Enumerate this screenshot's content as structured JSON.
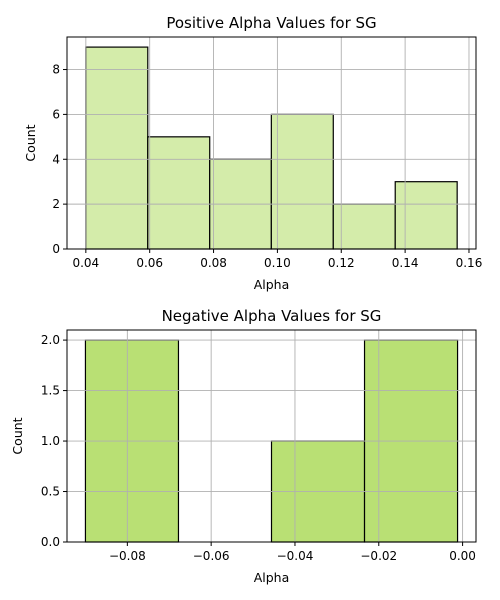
{
  "chart_data": [
    {
      "type": "bar",
      "title": "Positive Alpha Values for SG",
      "xlabel": "Alpha",
      "ylabel": "Count",
      "bin_edges": [
        0.04,
        0.0594,
        0.0788,
        0.0981,
        0.1175,
        0.1369,
        0.1563
      ],
      "values": [
        9,
        5,
        4,
        6,
        2,
        3
      ],
      "xlim": [
        0.0341,
        0.1622
      ],
      "ylim": [
        0,
        9.45
      ],
      "xticks": [
        0.04,
        0.06,
        0.08,
        0.1,
        0.12,
        0.14,
        0.16
      ],
      "xtick_labels": [
        "0.04",
        "0.06",
        "0.08",
        "0.10",
        "0.12",
        "0.14",
        "0.16"
      ],
      "yticks": [
        0,
        2,
        4,
        6,
        8
      ],
      "ytick_labels": [
        "0",
        "2",
        "4",
        "6",
        "8"
      ],
      "bar_color": "#d4ecaa",
      "edge_color": "#000000",
      "grid": true
    },
    {
      "type": "bar",
      "title": "Negative Alpha Values for SG",
      "xlabel": "Alpha",
      "ylabel": "Count",
      "bin_edges": [
        -0.09,
        -0.0678,
        -0.0456,
        -0.0234,
        -0.0012
      ],
      "values": [
        2,
        0,
        1,
        2
      ],
      "xlim": [
        -0.0944,
        0.0032
      ],
      "ylim": [
        0,
        2.1
      ],
      "xticks": [
        -0.08,
        -0.06,
        -0.04,
        -0.02,
        0.0
      ],
      "xtick_labels": [
        "−0.08",
        "−0.06",
        "−0.04",
        "−0.02",
        "0.00"
      ],
      "yticks": [
        0,
        0.5,
        1.0,
        1.5,
        2.0
      ],
      "ytick_labels": [
        "0.0",
        "0.5",
        "1.0",
        "1.5",
        "2.0"
      ],
      "bar_color": "#b9e074",
      "edge_color": "#000000",
      "grid": true
    }
  ]
}
